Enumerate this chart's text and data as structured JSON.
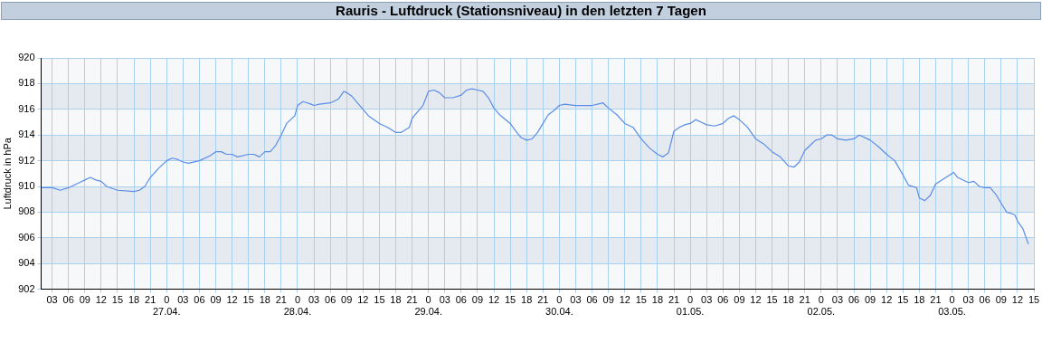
{
  "chart_data": {
    "type": "line",
    "title": "Rauris - Luftdruck (Stationsniveau) in den letzten 7 Tagen",
    "ylabel": "Luftdruck in hPa",
    "x": [
      "--04-26T01:00",
      "--04-26T03:00",
      "--04-26T04:30",
      "--04-26T06:00",
      "--04-26T08:00",
      "--04-26T09:00",
      "--04-26T10:00",
      "--04-26T11:00",
      "--04-26T12:00",
      "--04-26T13:00",
      "--04-26T15:00",
      "--04-26T18:00",
      "--04-26T19:00",
      "--04-26T20:00",
      "--04-26T21:00",
      "--04-26T22:30",
      "--04-27T00:00",
      "--04-27T01:00",
      "--04-27T02:00",
      "--04-27T03:00",
      "--04-27T04:00",
      "--04-27T06:00",
      "--04-27T08:00",
      "--04-27T09:00",
      "--04-27T10:00",
      "--04-27T11:00",
      "--04-27T12:00",
      "--04-27T13:00",
      "--04-27T15:00",
      "--04-27T16:00",
      "--04-27T17:00",
      "--04-27T18:00",
      "--04-27T19:00",
      "--04-27T20:00",
      "--04-27T21:00",
      "--04-27T22:00",
      "--04-27T23:30",
      "--04-28T00:00",
      "--04-28T01:00",
      "--04-28T02:30",
      "--04-28T03:00",
      "--04-28T04:00",
      "--04-28T06:00",
      "--04-28T07:30",
      "--04-28T08:30",
      "--04-28T09:00",
      "--04-28T10:00",
      "--04-28T12:00",
      "--04-28T13:00",
      "--04-28T15:00",
      "--04-28T16:30",
      "--04-28T18:00",
      "--04-28T19:00",
      "--04-28T20:30",
      "--04-28T21:00",
      "--04-28T22:00",
      "--04-28T23:00",
      "--04-29T00:00",
      "--04-29T01:00",
      "--04-29T02:00",
      "--04-29T03:00",
      "--04-29T04:30",
      "--04-29T06:00",
      "--04-29T07:00",
      "--04-29T08:00",
      "--04-29T09:00",
      "--04-29T10:00",
      "--04-29T11:00",
      "--04-29T12:00",
      "--04-29T13:00",
      "--04-29T15:00",
      "--04-29T16:00",
      "--04-29T17:00",
      "--04-29T18:00",
      "--04-29T19:00",
      "--04-29T20:00",
      "--04-29T21:00",
      "--04-29T22:00",
      "--04-29T23:00",
      "--04-30T00:00",
      "--04-30T01:00",
      "--04-30T03:00",
      "--04-30T06:00",
      "--04-30T07:00",
      "--04-30T08:00",
      "--04-30T09:00",
      "--04-30T10:30",
      "--04-30T12:00",
      "--04-30T13:30",
      "--04-30T15:00",
      "--04-30T16:30",
      "--04-30T18:00",
      "--04-30T19:00",
      "--04-30T20:00",
      "--04-30T21:00",
      "--04-30T22:00",
      "--04-30T23:00",
      "--05-01T00:00",
      "--05-01T01:00",
      "--05-01T02:00",
      "--05-01T03:00",
      "--05-01T04:30",
      "--05-01T06:00",
      "--05-01T07:00",
      "--05-01T08:00",
      "--05-01T09:00",
      "--05-01T10:30",
      "--05-01T12:00",
      "--05-01T13:30",
      "--05-01T15:00",
      "--05-01T16:30",
      "--05-01T18:00",
      "--05-01T19:00",
      "--05-01T20:00",
      "--05-01T21:00",
      "--05-01T22:00",
      "--05-01T23:00",
      "--05-02T00:00",
      "--05-02T01:00",
      "--05-02T02:00",
      "--05-02T03:00",
      "--05-02T04:30",
      "--05-02T06:00",
      "--05-02T07:00",
      "--05-02T09:00",
      "--05-02T10:30",
      "--05-02T12:00",
      "--05-02T13:30",
      "--05-02T15:00",
      "--05-02T16:00",
      "--05-02T17:30",
      "--05-02T18:00",
      "--05-02T19:00",
      "--05-02T20:00",
      "--05-02T21:00",
      "--05-02T22:30",
      "--05-03T00:00",
      "--05-03T00:18",
      "--05-03T01:00",
      "--05-03T03:00",
      "--05-03T04:00",
      "--05-03T05:00",
      "--05-03T06:00",
      "--05-03T07:00",
      "--05-03T08:00",
      "--05-03T09:00",
      "--05-03T10:00",
      "--05-03T11:30",
      "--05-03T12:00",
      "--05-03T13:00",
      "--05-03T14:00"
    ],
    "series": [
      {
        "color": "#5b8de6",
        "values": [
          909.9,
          909.9,
          909.7,
          909.9,
          910.3,
          910.5,
          910.7,
          910.5,
          910.4,
          910.0,
          909.7,
          909.6,
          909.7,
          910.0,
          910.7,
          911.4,
          912.0,
          912.2,
          912.1,
          911.9,
          911.8,
          912.0,
          912.4,
          912.7,
          912.7,
          912.5,
          912.5,
          912.3,
          912.5,
          912.5,
          912.3,
          912.7,
          912.7,
          913.2,
          914.0,
          914.9,
          915.5,
          916.3,
          916.6,
          916.4,
          916.3,
          916.4,
          916.5,
          916.8,
          917.4,
          917.3,
          917.0,
          916.0,
          915.5,
          914.9,
          914.6,
          914.2,
          914.2,
          914.6,
          915.3,
          915.8,
          916.3,
          917.4,
          917.5,
          917.3,
          916.9,
          916.9,
          917.1,
          917.5,
          917.6,
          917.5,
          917.4,
          916.9,
          916.1,
          915.6,
          914.9,
          914.3,
          913.8,
          913.6,
          913.7,
          914.2,
          914.9,
          915.6,
          915.9,
          916.3,
          916.4,
          916.3,
          916.3,
          916.4,
          916.5,
          916.1,
          915.6,
          914.9,
          914.6,
          913.7,
          913.0,
          912.5,
          912.3,
          912.6,
          914.3,
          914.6,
          914.8,
          914.9,
          915.2,
          915.0,
          914.8,
          914.7,
          914.9,
          915.3,
          915.5,
          915.2,
          914.6,
          913.7,
          913.3,
          912.7,
          912.3,
          911.6,
          911.5,
          911.9,
          912.8,
          913.2,
          913.6,
          913.7,
          914.0,
          914.0,
          913.7,
          913.6,
          913.7,
          914.0,
          913.6,
          913.1,
          912.5,
          912.0,
          910.9,
          910.1,
          909.9,
          909.1,
          908.9,
          909.3,
          910.2,
          910.6,
          911.0,
          911.1,
          910.7,
          910.3,
          910.4,
          910.0,
          909.9,
          909.9,
          909.4,
          908.7,
          908.0,
          907.8,
          907.3,
          906.7,
          905.5
        ]
      }
    ],
    "xlim": [
      "--04-26T01:00",
      "--05-03T15:00"
    ],
    "xticks": [
      {
        "value": "--04-26T03:00",
        "label": "03"
      },
      {
        "value": "--04-26T06:00",
        "label": "06"
      },
      {
        "value": "--04-26T09:00",
        "label": "09"
      },
      {
        "value": "--04-26T12:00",
        "label": "12"
      },
      {
        "value": "--04-26T15:00",
        "label": "15"
      },
      {
        "value": "--04-26T18:00",
        "label": "18"
      },
      {
        "value": "--04-26T21:00",
        "label": "21"
      },
      {
        "value": "--04-27T00:00",
        "label": "0\n27.04."
      },
      {
        "value": "--04-27T03:00",
        "label": "03"
      },
      {
        "value": "--04-27T06:00",
        "label": "06"
      },
      {
        "value": "--04-27T09:00",
        "label": "09"
      },
      {
        "value": "--04-27T12:00",
        "label": "12"
      },
      {
        "value": "--04-27T15:00",
        "label": "15"
      },
      {
        "value": "--04-27T18:00",
        "label": "18"
      },
      {
        "value": "--04-27T21:00",
        "label": "21"
      },
      {
        "value": "--04-28T00:00",
        "label": "0\n28.04."
      },
      {
        "value": "--04-28T03:00",
        "label": "03"
      },
      {
        "value": "--04-28T06:00",
        "label": "06"
      },
      {
        "value": "--04-28T09:00",
        "label": "09"
      },
      {
        "value": "--04-28T12:00",
        "label": "12"
      },
      {
        "value": "--04-28T15:00",
        "label": "15"
      },
      {
        "value": "--04-28T18:00",
        "label": "18"
      },
      {
        "value": "--04-28T21:00",
        "label": "21"
      },
      {
        "value": "--04-29T00:00",
        "label": "0\n29.04."
      },
      {
        "value": "--04-29T03:00",
        "label": "03"
      },
      {
        "value": "--04-29T06:00",
        "label": "06"
      },
      {
        "value": "--04-29T09:00",
        "label": "09"
      },
      {
        "value": "--04-29T12:00",
        "label": "12"
      },
      {
        "value": "--04-29T15:00",
        "label": "15"
      },
      {
        "value": "--04-29T18:00",
        "label": "18"
      },
      {
        "value": "--04-29T21:00",
        "label": "21"
      },
      {
        "value": "--04-30T00:00",
        "label": "0\n30.04."
      },
      {
        "value": "--04-30T03:00",
        "label": "03"
      },
      {
        "value": "--04-30T06:00",
        "label": "06"
      },
      {
        "value": "--04-30T09:00",
        "label": "09"
      },
      {
        "value": "--04-30T12:00",
        "label": "12"
      },
      {
        "value": "--04-30T15:00",
        "label": "15"
      },
      {
        "value": "--04-30T18:00",
        "label": "18"
      },
      {
        "value": "--04-30T21:00",
        "label": "21"
      },
      {
        "value": "--05-01T00:00",
        "label": "0\n01.05."
      },
      {
        "value": "--05-01T03:00",
        "label": "03"
      },
      {
        "value": "--05-01T06:00",
        "label": "06"
      },
      {
        "value": "--05-01T09:00",
        "label": "09"
      },
      {
        "value": "--05-01T12:00",
        "label": "12"
      },
      {
        "value": "--05-01T15:00",
        "label": "15"
      },
      {
        "value": "--05-01T18:00",
        "label": "18"
      },
      {
        "value": "--05-01T21:00",
        "label": "21"
      },
      {
        "value": "--05-02T00:00",
        "label": "0\n02.05."
      },
      {
        "value": "--05-02T03:00",
        "label": "03"
      },
      {
        "value": "--05-02T06:00",
        "label": "06"
      },
      {
        "value": "--05-02T09:00",
        "label": "09"
      },
      {
        "value": "--05-02T12:00",
        "label": "12"
      },
      {
        "value": "--05-02T15:00",
        "label": "15"
      },
      {
        "value": "--05-02T18:00",
        "label": "18"
      },
      {
        "value": "--05-02T21:00",
        "label": "21"
      },
      {
        "value": "--05-03T00:00",
        "label": "0\n03.05."
      },
      {
        "value": "--05-03T03:00",
        "label": "03"
      },
      {
        "value": "--05-03T06:00",
        "label": "06"
      },
      {
        "value": "--05-03T09:00",
        "label": "09"
      },
      {
        "value": "--05-03T12:00",
        "label": "12"
      },
      {
        "value": "--05-03T15:00",
        "label": "15"
      }
    ],
    "ylim": [
      902,
      920
    ],
    "yticks": [
      902,
      904,
      906,
      908,
      910,
      912,
      914,
      916,
      918,
      920
    ],
    "grid": true,
    "legend": false,
    "marker": "none",
    "line_style": "solid"
  }
}
